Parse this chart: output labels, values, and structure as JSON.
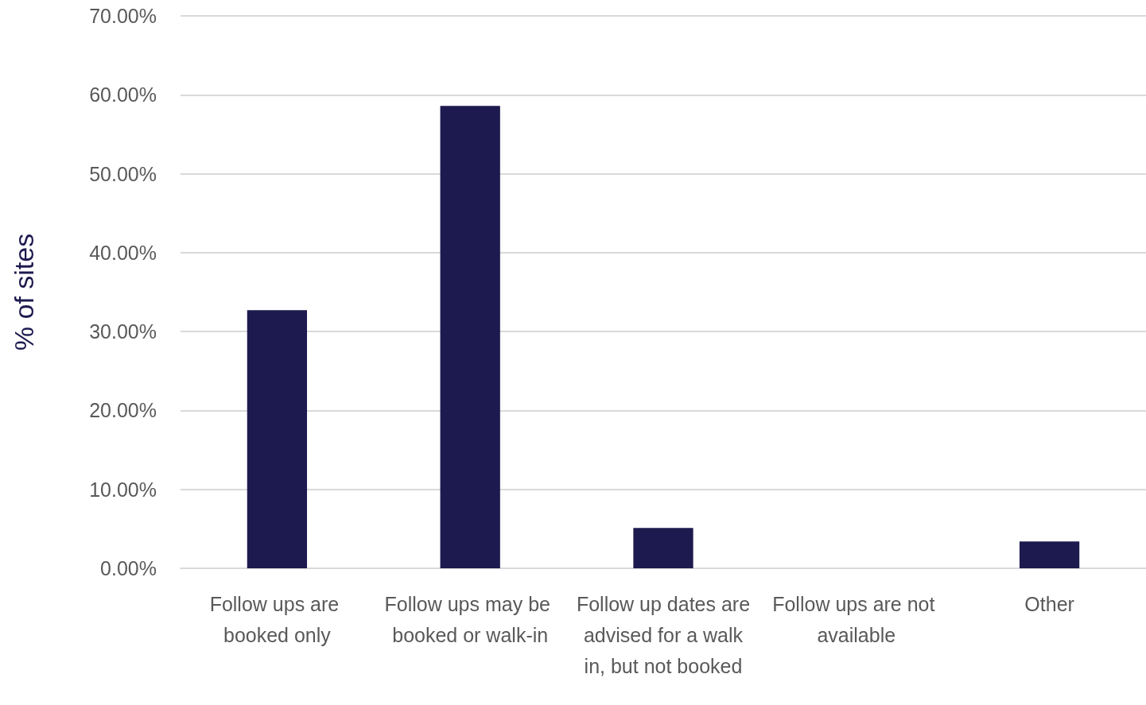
{
  "chart_data": {
    "type": "bar",
    "ylabel": "% of sites",
    "categories": [
      "Follow ups are booked only",
      "Follow ups may be booked or walk-in",
      "Follow up dates are advised for a walk in, but not booked",
      "Follow ups are not available",
      "Other"
    ],
    "values": [
      32.7,
      58.6,
      5.1,
      0,
      3.4
    ],
    "color": "#1c1a4e",
    "ylim": [
      0,
      70
    ],
    "yticks": [
      {
        "value": 0,
        "label": "0.00%"
      },
      {
        "value": 10,
        "label": "10.00%"
      },
      {
        "value": 20,
        "label": "20.00%"
      },
      {
        "value": 30,
        "label": "30.00%"
      },
      {
        "value": 40,
        "label": "40.00%"
      },
      {
        "value": 50,
        "label": "50.00%"
      },
      {
        "value": 60,
        "label": "60.00%"
      },
      {
        "value": 70,
        "label": "70.00%"
      }
    ],
    "grid": "y"
  }
}
